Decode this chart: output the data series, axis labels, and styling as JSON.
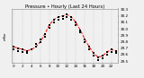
{
  "title": "Pressure • Hourly (Last 24 Hours)",
  "hours": [
    0,
    1,
    2,
    3,
    4,
    5,
    6,
    7,
    8,
    9,
    10,
    11,
    12,
    13,
    14,
    15,
    16,
    17,
    18,
    19,
    20,
    21,
    22,
    23
  ],
  "pressure_line": [
    29.72,
    29.7,
    29.68,
    29.66,
    29.68,
    29.72,
    29.8,
    29.92,
    30.06,
    30.14,
    30.18,
    30.2,
    30.22,
    30.18,
    30.1,
    29.98,
    29.84,
    29.72,
    29.62,
    29.56,
    29.58,
    29.64,
    29.68,
    29.66
  ],
  "pressure_scatter": [
    [
      0,
      29.72
    ],
    [
      0,
      29.68
    ],
    [
      1,
      29.7
    ],
    [
      1,
      29.66
    ],
    [
      2,
      29.68
    ],
    [
      2,
      29.64
    ],
    [
      3,
      29.66
    ],
    [
      3,
      29.62
    ],
    [
      4,
      29.68
    ],
    [
      5,
      29.72
    ],
    [
      5,
      29.76
    ],
    [
      6,
      29.8
    ],
    [
      6,
      29.84
    ],
    [
      7,
      29.92
    ],
    [
      7,
      29.88
    ],
    [
      8,
      30.06
    ],
    [
      8,
      30.02
    ],
    [
      9,
      30.14
    ],
    [
      9,
      30.1
    ],
    [
      10,
      30.18
    ],
    [
      10,
      30.14
    ],
    [
      11,
      30.2
    ],
    [
      11,
      30.16
    ],
    [
      12,
      30.22
    ],
    [
      12,
      30.18
    ],
    [
      13,
      30.18
    ],
    [
      13,
      30.14
    ],
    [
      14,
      30.1
    ],
    [
      14,
      30.06
    ],
    [
      15,
      29.98
    ],
    [
      15,
      29.94
    ],
    [
      16,
      29.84
    ],
    [
      16,
      29.8
    ],
    [
      17,
      29.72
    ],
    [
      17,
      29.68
    ],
    [
      18,
      29.62
    ],
    [
      18,
      29.58
    ],
    [
      19,
      29.56
    ],
    [
      19,
      29.52
    ],
    [
      20,
      29.58
    ],
    [
      20,
      29.54
    ],
    [
      21,
      29.64
    ],
    [
      21,
      29.6
    ],
    [
      22,
      29.68
    ],
    [
      22,
      29.64
    ],
    [
      23,
      29.66
    ],
    [
      23,
      29.62
    ]
  ],
  "ylim": [
    29.48,
    30.3
  ],
  "yticks": [
    29.5,
    29.6,
    29.7,
    29.8,
    29.9,
    30.0,
    30.1,
    30.2,
    30.3
  ],
  "ytick_labels": [
    "29.5",
    "29.6",
    "29.7",
    "29.8",
    "29.9",
    "30.0",
    "30.1",
    "30.2",
    "30.3"
  ],
  "xlim": [
    -0.5,
    23.5
  ],
  "xticks": [
    0,
    2,
    4,
    6,
    8,
    10,
    12,
    14,
    16,
    18,
    20,
    22
  ],
  "dot_color": "#000000",
  "line_color": "#ff0000",
  "grid_color": "#888888",
  "bg_color": "#f0f0f0",
  "title_fontsize": 3.8,
  "tick_fontsize": 3.0,
  "left_label": "mBar"
}
